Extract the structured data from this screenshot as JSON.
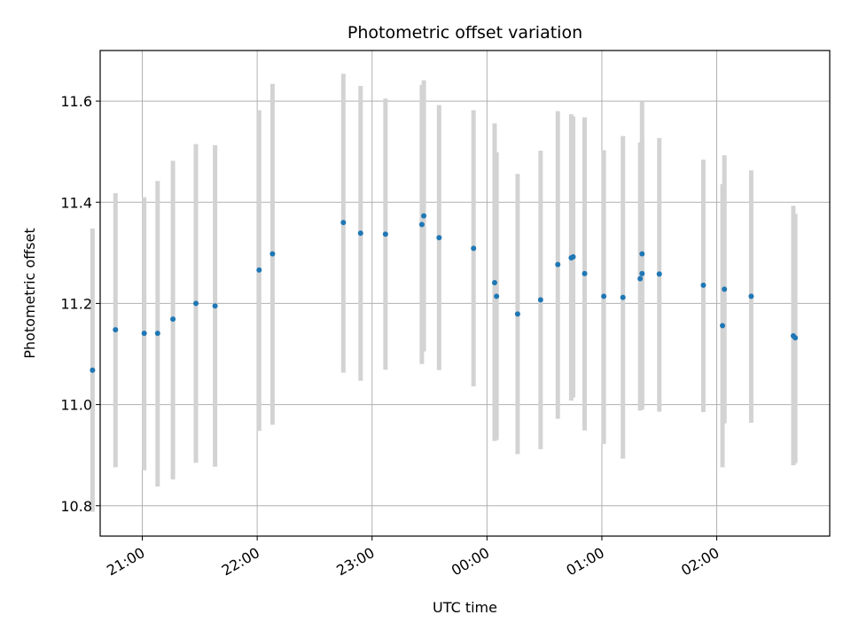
{
  "chart_data": {
    "type": "scatter",
    "title": "Photometric offset variation",
    "xlabel": "UTC time",
    "ylabel": "Photometric offset",
    "grid": true,
    "x_axis": {
      "type": "time",
      "range": [
        "20:38",
        "02:59"
      ],
      "ticks": [
        "21:00",
        "22:00",
        "23:00",
        "00:00",
        "01:00",
        "02:00"
      ]
    },
    "y_axis": {
      "range": [
        10.74,
        11.7
      ],
      "ticks": [
        "10.8",
        "11.0",
        "11.2",
        "11.4",
        "11.6"
      ]
    },
    "colors": {
      "points": "#1f77b4",
      "errorbars": "#d3d3d3",
      "grid": "#b0b0b0"
    },
    "points": [
      {
        "t": "20:34",
        "y": 11.068,
        "lo": 10.788,
        "hi": 11.348
      },
      {
        "t": "20:46",
        "y": 11.148,
        "lo": 10.876,
        "hi": 11.418
      },
      {
        "t": "21:01",
        "y": 11.141,
        "lo": 10.87,
        "hi": 11.41
      },
      {
        "t": "21:08",
        "y": 11.141,
        "lo": 10.838,
        "hi": 11.442
      },
      {
        "t": "21:16",
        "y": 11.169,
        "lo": 10.852,
        "hi": 11.482
      },
      {
        "t": "21:28",
        "y": 11.2,
        "lo": 10.885,
        "hi": 11.515
      },
      {
        "t": "21:38",
        "y": 11.195,
        "lo": 10.877,
        "hi": 11.513
      },
      {
        "t": "22:01",
        "y": 11.266,
        "lo": 10.948,
        "hi": 11.582
      },
      {
        "t": "22:08",
        "y": 11.298,
        "lo": 10.96,
        "hi": 11.634
      },
      {
        "t": "22:45",
        "y": 11.36,
        "lo": 11.063,
        "hi": 11.654
      },
      {
        "t": "22:54",
        "y": 11.339,
        "lo": 11.047,
        "hi": 11.63
      },
      {
        "t": "23:07",
        "y": 11.337,
        "lo": 11.069,
        "hi": 11.605
      },
      {
        "t": "23:26",
        "y": 11.356,
        "lo": 11.08,
        "hi": 11.632
      },
      {
        "t": "23:27",
        "y": 11.373,
        "lo": 11.105,
        "hi": 11.641
      },
      {
        "t": "23:35",
        "y": 11.33,
        "lo": 11.068,
        "hi": 11.592
      },
      {
        "t": "23:53",
        "y": 11.309,
        "lo": 11.036,
        "hi": 11.582
      },
      {
        "t": "00:04",
        "y": 11.241,
        "lo": 10.928,
        "hi": 11.556
      },
      {
        "t": "00:05",
        "y": 11.214,
        "lo": 10.93,
        "hi": 11.499
      },
      {
        "t": "00:16",
        "y": 11.179,
        "lo": 10.902,
        "hi": 11.456
      },
      {
        "t": "00:28",
        "y": 11.207,
        "lo": 10.912,
        "hi": 11.502
      },
      {
        "t": "00:37",
        "y": 11.277,
        "lo": 10.972,
        "hi": 11.58
      },
      {
        "t": "00:44",
        "y": 11.29,
        "lo": 11.008,
        "hi": 11.574
      },
      {
        "t": "00:45",
        "y": 11.292,
        "lo": 11.014,
        "hi": 11.57
      },
      {
        "t": "00:51",
        "y": 11.259,
        "lo": 10.949,
        "hi": 11.568
      },
      {
        "t": "01:01",
        "y": 11.214,
        "lo": 10.922,
        "hi": 11.503
      },
      {
        "t": "01:11",
        "y": 11.212,
        "lo": 10.893,
        "hi": 11.531
      },
      {
        "t": "01:20",
        "y": 11.249,
        "lo": 10.988,
        "hi": 11.518
      },
      {
        "t": "01:21",
        "y": 11.259,
        "lo": 10.99,
        "hi": 11.525
      },
      {
        "t": "01:21",
        "y": 11.298,
        "lo": 10.996,
        "hi": 11.6
      },
      {
        "t": "01:30",
        "y": 11.258,
        "lo": 10.986,
        "hi": 11.527
      },
      {
        "t": "01:53",
        "y": 11.236,
        "lo": 10.985,
        "hi": 11.484
      },
      {
        "t": "02:03",
        "y": 11.156,
        "lo": 10.876,
        "hi": 11.436
      },
      {
        "t": "02:04",
        "y": 11.228,
        "lo": 10.963,
        "hi": 11.493
      },
      {
        "t": "02:18",
        "y": 11.214,
        "lo": 10.964,
        "hi": 11.463
      },
      {
        "t": "02:40",
        "y": 11.136,
        "lo": 10.88,
        "hi": 11.393
      },
      {
        "t": "02:41",
        "y": 11.132,
        "lo": 10.884,
        "hi": 11.377
      }
    ]
  }
}
